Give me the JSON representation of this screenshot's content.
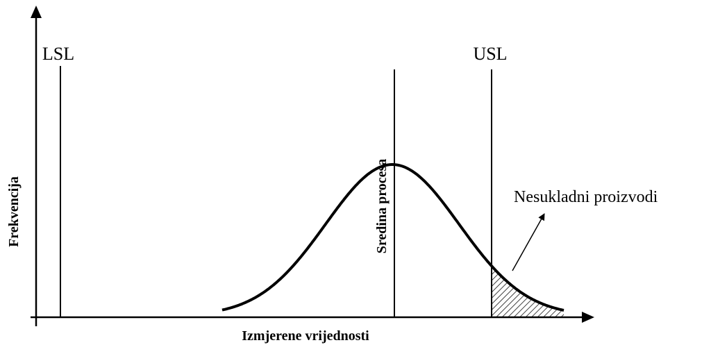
{
  "labels": {
    "lsl": "LSL",
    "usl": "USL",
    "mean": "Sredina procesa",
    "nonconforming": "Nesukladni proizvodi",
    "y_axis": "Frekvencija",
    "x_axis": "Izmjerene vrijednosti"
  }
}
